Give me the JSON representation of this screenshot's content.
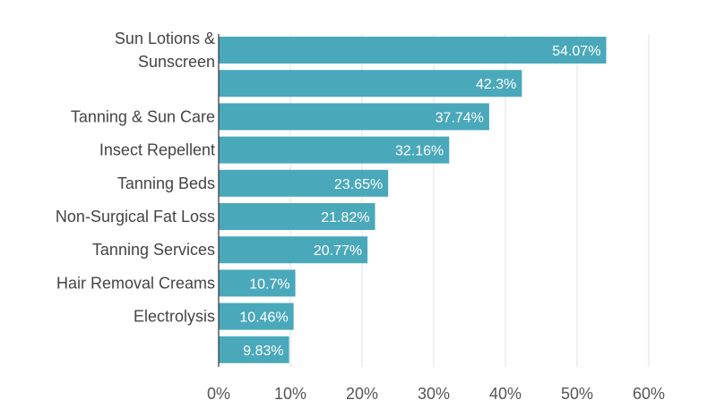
{
  "chart_data": {
    "type": "bar",
    "orientation": "horizontal",
    "categories": [
      [
        "Sun Lotions &",
        "Sunscreen"
      ],
      [],
      [
        "Tanning & Sun Care"
      ],
      [
        "Insect Repellent"
      ],
      [
        "Tanning Beds"
      ],
      [
        "Non-Surgical Fat Loss"
      ],
      [
        "Tanning Services"
      ],
      [
        "Hair Removal Creams"
      ],
      [
        "Electrolysis"
      ],
      []
    ],
    "values": [
      54.07,
      42.3,
      37.74,
      32.16,
      23.65,
      21.82,
      20.77,
      10.7,
      10.46,
      9.83
    ],
    "value_labels": [
      "54.07%",
      "42.3%",
      "37.74%",
      "32.16%",
      "23.65%",
      "21.82%",
      "20.77%",
      "10.7%",
      "10.46%",
      "9.83%"
    ],
    "x_ticks": [
      "0%",
      "10%",
      "20%",
      "30%",
      "40%",
      "50%",
      "60%"
    ],
    "xlim": [
      0,
      60
    ],
    "grid": true,
    "bar_color": "#4aa8bb"
  }
}
